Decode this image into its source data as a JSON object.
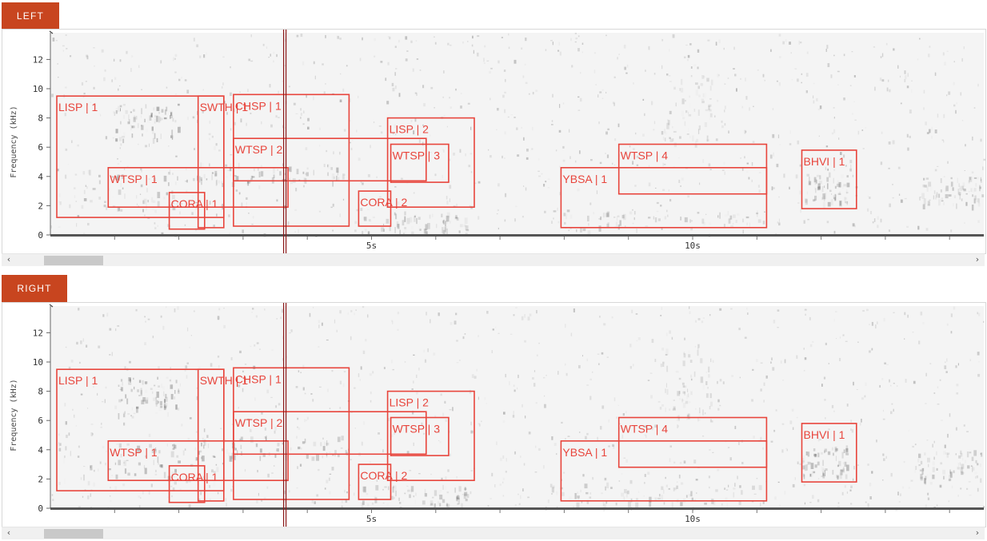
{
  "panels": [
    {
      "id": "left",
      "label": "LEFT",
      "y_axis_label": "Frequency (kHz)",
      "y_ticks": [
        "12",
        "10",
        "8",
        "6",
        "4",
        "2",
        "0"
      ],
      "x_ticks": [
        "5s",
        "10s"
      ],
      "playhead_time_s": 3.65,
      "scroll_position_fraction": 0.03,
      "annotations": [
        {
          "label": "LISP | 1",
          "start_s": 0.1,
          "end_s": 2.7,
          "low_khz": 1.2,
          "high_khz": 9.5
        },
        {
          "label": "WTSP | 1",
          "start_s": 0.9,
          "end_s": 3.7,
          "low_khz": 1.9,
          "high_khz": 4.6
        },
        {
          "label": "CORA | 1",
          "start_s": 1.85,
          "end_s": 2.4,
          "low_khz": 0.4,
          "high_khz": 2.9
        },
        {
          "label": "SWTH | 1",
          "start_s": 2.3,
          "end_s": 2.7,
          "low_khz": 0.5,
          "high_khz": 9.5
        },
        {
          "label": "CHSP | 1",
          "start_s": 2.85,
          "end_s": 4.65,
          "low_khz": 0.6,
          "high_khz": 9.6
        },
        {
          "label": "WTSP | 2",
          "start_s": 2.85,
          "end_s": 5.85,
          "low_khz": 3.7,
          "high_khz": 6.6
        },
        {
          "label": "LISP | 2",
          "start_s": 5.25,
          "end_s": 6.6,
          "low_khz": 1.9,
          "high_khz": 8.0
        },
        {
          "label": "WTSP | 3",
          "start_s": 5.3,
          "end_s": 6.2,
          "low_khz": 3.6,
          "high_khz": 6.2
        },
        {
          "label": "CORA | 2",
          "start_s": 4.8,
          "end_s": 5.3,
          "low_khz": 0.6,
          "high_khz": 3.0
        },
        {
          "label": "YBSA | 1",
          "start_s": 7.95,
          "end_s": 11.15,
          "low_khz": 0.5,
          "high_khz": 4.6
        },
        {
          "label": "WTSP | 4",
          "start_s": 8.85,
          "end_s": 11.15,
          "low_khz": 2.8,
          "high_khz": 6.2
        },
        {
          "label": "BHVI | 1",
          "start_s": 11.7,
          "end_s": 12.55,
          "low_khz": 1.8,
          "high_khz": 5.8
        }
      ]
    },
    {
      "id": "right",
      "label": "RIGHT",
      "y_axis_label": "Frequency (kHz)",
      "y_ticks": [
        "12",
        "10",
        "8",
        "6",
        "4",
        "2",
        "0"
      ],
      "x_ticks": [
        "5s",
        "10s"
      ],
      "playhead_time_s": 3.65,
      "scroll_position_fraction": 0.03,
      "annotations": [
        {
          "label": "LISP | 1",
          "start_s": 0.1,
          "end_s": 2.7,
          "low_khz": 1.2,
          "high_khz": 9.5
        },
        {
          "label": "WTSP | 1",
          "start_s": 0.9,
          "end_s": 3.7,
          "low_khz": 1.9,
          "high_khz": 4.6
        },
        {
          "label": "CORA | 1",
          "start_s": 1.85,
          "end_s": 2.4,
          "low_khz": 0.4,
          "high_khz": 2.9
        },
        {
          "label": "SWTH | 1",
          "start_s": 2.3,
          "end_s": 2.7,
          "low_khz": 0.5,
          "high_khz": 9.5
        },
        {
          "label": "CHSP | 1",
          "start_s": 2.85,
          "end_s": 4.65,
          "low_khz": 0.6,
          "high_khz": 9.6
        },
        {
          "label": "WTSP | 2",
          "start_s": 2.85,
          "end_s": 5.85,
          "low_khz": 3.7,
          "high_khz": 6.6
        },
        {
          "label": "LISP | 2",
          "start_s": 5.25,
          "end_s": 6.6,
          "low_khz": 1.9,
          "high_khz": 8.0
        },
        {
          "label": "WTSP | 3",
          "start_s": 5.3,
          "end_s": 6.2,
          "low_khz": 3.6,
          "high_khz": 6.2
        },
        {
          "label": "CORA | 2",
          "start_s": 4.8,
          "end_s": 5.3,
          "low_khz": 0.6,
          "high_khz": 3.0
        },
        {
          "label": "YBSA | 1",
          "start_s": 7.95,
          "end_s": 11.15,
          "low_khz": 0.5,
          "high_khz": 4.6
        },
        {
          "label": "WTSP | 4",
          "start_s": 8.85,
          "end_s": 11.15,
          "low_khz": 2.8,
          "high_khz": 6.2
        },
        {
          "label": "BHVI | 1",
          "start_s": 11.7,
          "end_s": 12.55,
          "low_khz": 1.8,
          "high_khz": 5.8
        }
      ]
    }
  ],
  "scroll_left_icon": "chevron-left-icon",
  "scroll_right_icon": "chevron-right-icon",
  "colors": {
    "tab": "#c8451f",
    "box": "#e8453c",
    "playhead": "#8b1a1a",
    "axis": "#555555"
  }
}
